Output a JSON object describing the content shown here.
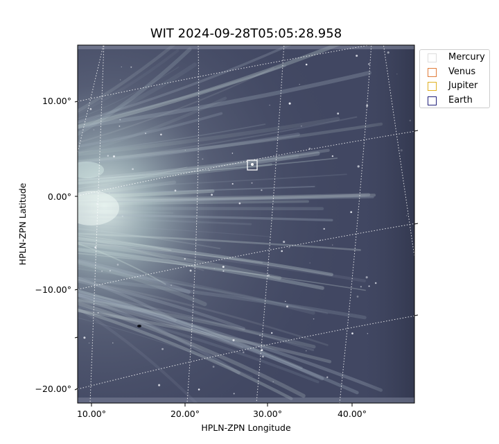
{
  "figure": {
    "title": "WIT 2024-09-28T05:05:28.958",
    "xlabel": "HPLN-ZPN Longitude",
    "ylabel": "HPLN-ZPN Latitude",
    "background": "#404660"
  },
  "axes": {
    "lon_ticks": [
      "10.00°",
      "20.00°",
      "30.00°",
      "40.00°"
    ],
    "lat_ticks": [
      "10.00°",
      "0.00°",
      "−10.00°",
      "−20.00°"
    ]
  },
  "legend": {
    "entries": [
      {
        "label": "Mercury",
        "color": "#dddddd"
      },
      {
        "label": "Venus",
        "color": "#e07b39"
      },
      {
        "label": "Jupiter",
        "color": "#e0b020"
      },
      {
        "label": "Earth",
        "color": "#1f1f7a"
      }
    ]
  }
}
